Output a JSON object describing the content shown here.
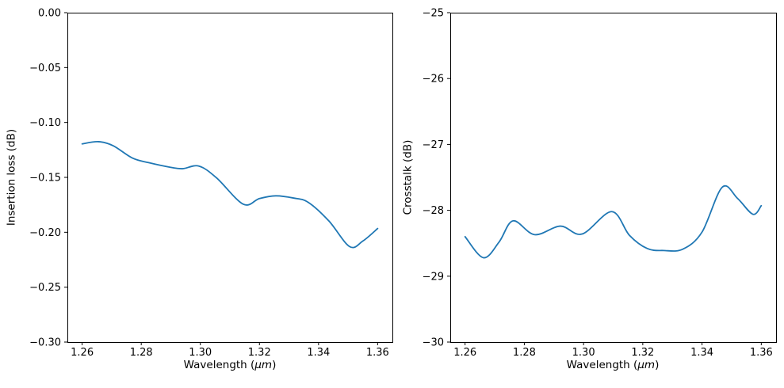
{
  "figure": {
    "background": "#ffffff",
    "spine_color": "#000000",
    "tick_color": "#000000",
    "text_color": "#000000",
    "accent_color": "#1f77b4"
  },
  "chart_data": [
    {
      "type": "line",
      "name": "insertion-loss",
      "title": "",
      "xlabel": "Wavelength (μm)",
      "xlabel_parts": {
        "prefix": "Wavelength (",
        "italic": "μm",
        "suffix": ")"
      },
      "ylabel": "Insertion loss (dB)",
      "xlim": [
        1.255,
        1.365
      ],
      "ylim": [
        -0.3,
        0.0
      ],
      "grid": false,
      "legend": null,
      "xticks": {
        "values": [
          1.26,
          1.28,
          1.3,
          1.32,
          1.34,
          1.36
        ],
        "labels": [
          "1.26",
          "1.28",
          "1.30",
          "1.32",
          "1.34",
          "1.36"
        ]
      },
      "yticks": {
        "values": [
          0.0,
          -0.05,
          -0.1,
          -0.15,
          -0.2,
          -0.25,
          -0.3
        ],
        "labels": [
          "0.00",
          "−0.05",
          "−0.10",
          "−0.15",
          "−0.20",
          "−0.25",
          "−0.30"
        ]
      },
      "series": [
        {
          "name": "insertion-loss-curve",
          "color": "#1f77b4",
          "x": [
            1.26,
            1.2655,
            1.2705,
            1.277,
            1.2825,
            1.29,
            1.294,
            1.2995,
            1.3055,
            1.3145,
            1.32,
            1.3255,
            1.3315,
            1.3365,
            1.3435,
            1.3505,
            1.355,
            1.36
          ],
          "y": [
            -0.1195,
            -0.1175,
            -0.1212,
            -0.1324,
            -0.1366,
            -0.1409,
            -0.1421,
            -0.1397,
            -0.1505,
            -0.1744,
            -0.1693,
            -0.1668,
            -0.1688,
            -0.1727,
            -0.1897,
            -0.213,
            -0.208,
            -0.1966
          ]
        }
      ]
    },
    {
      "type": "line",
      "name": "crosstalk",
      "title": "",
      "xlabel": "Wavelength (μm)",
      "xlabel_parts": {
        "prefix": "Wavelength (",
        "italic": "μm",
        "suffix": ")"
      },
      "ylabel": "Crosstalk (dB)",
      "xlim": [
        1.255,
        1.365
      ],
      "ylim": [
        -30,
        -25
      ],
      "grid": false,
      "legend": null,
      "xticks": {
        "values": [
          1.26,
          1.28,
          1.3,
          1.32,
          1.34,
          1.36
        ],
        "labels": [
          "1.26",
          "1.28",
          "1.30",
          "1.32",
          "1.34",
          "1.36"
        ]
      },
      "yticks": {
        "values": [
          -25,
          -26,
          -27,
          -28,
          -29,
          -30
        ],
        "labels": [
          "−25",
          "−26",
          "−27",
          "−28",
          "−29",
          "−30"
        ]
      },
      "series": [
        {
          "name": "crosstalk-curve",
          "color": "#1f77b4",
          "x": [
            1.26,
            1.2662,
            1.2715,
            1.2762,
            1.2835,
            1.2922,
            1.2995,
            1.3095,
            1.3155,
            1.3215,
            1.327,
            1.3335,
            1.34,
            1.3468,
            1.352,
            1.3572,
            1.36
          ],
          "y": [
            -28.4,
            -28.72,
            -28.48,
            -28.16,
            -28.37,
            -28.24,
            -28.36,
            -28.02,
            -28.38,
            -28.58,
            -28.61,
            -28.59,
            -28.33,
            -27.65,
            -27.82,
            -28.06,
            -27.93
          ]
        }
      ]
    }
  ]
}
